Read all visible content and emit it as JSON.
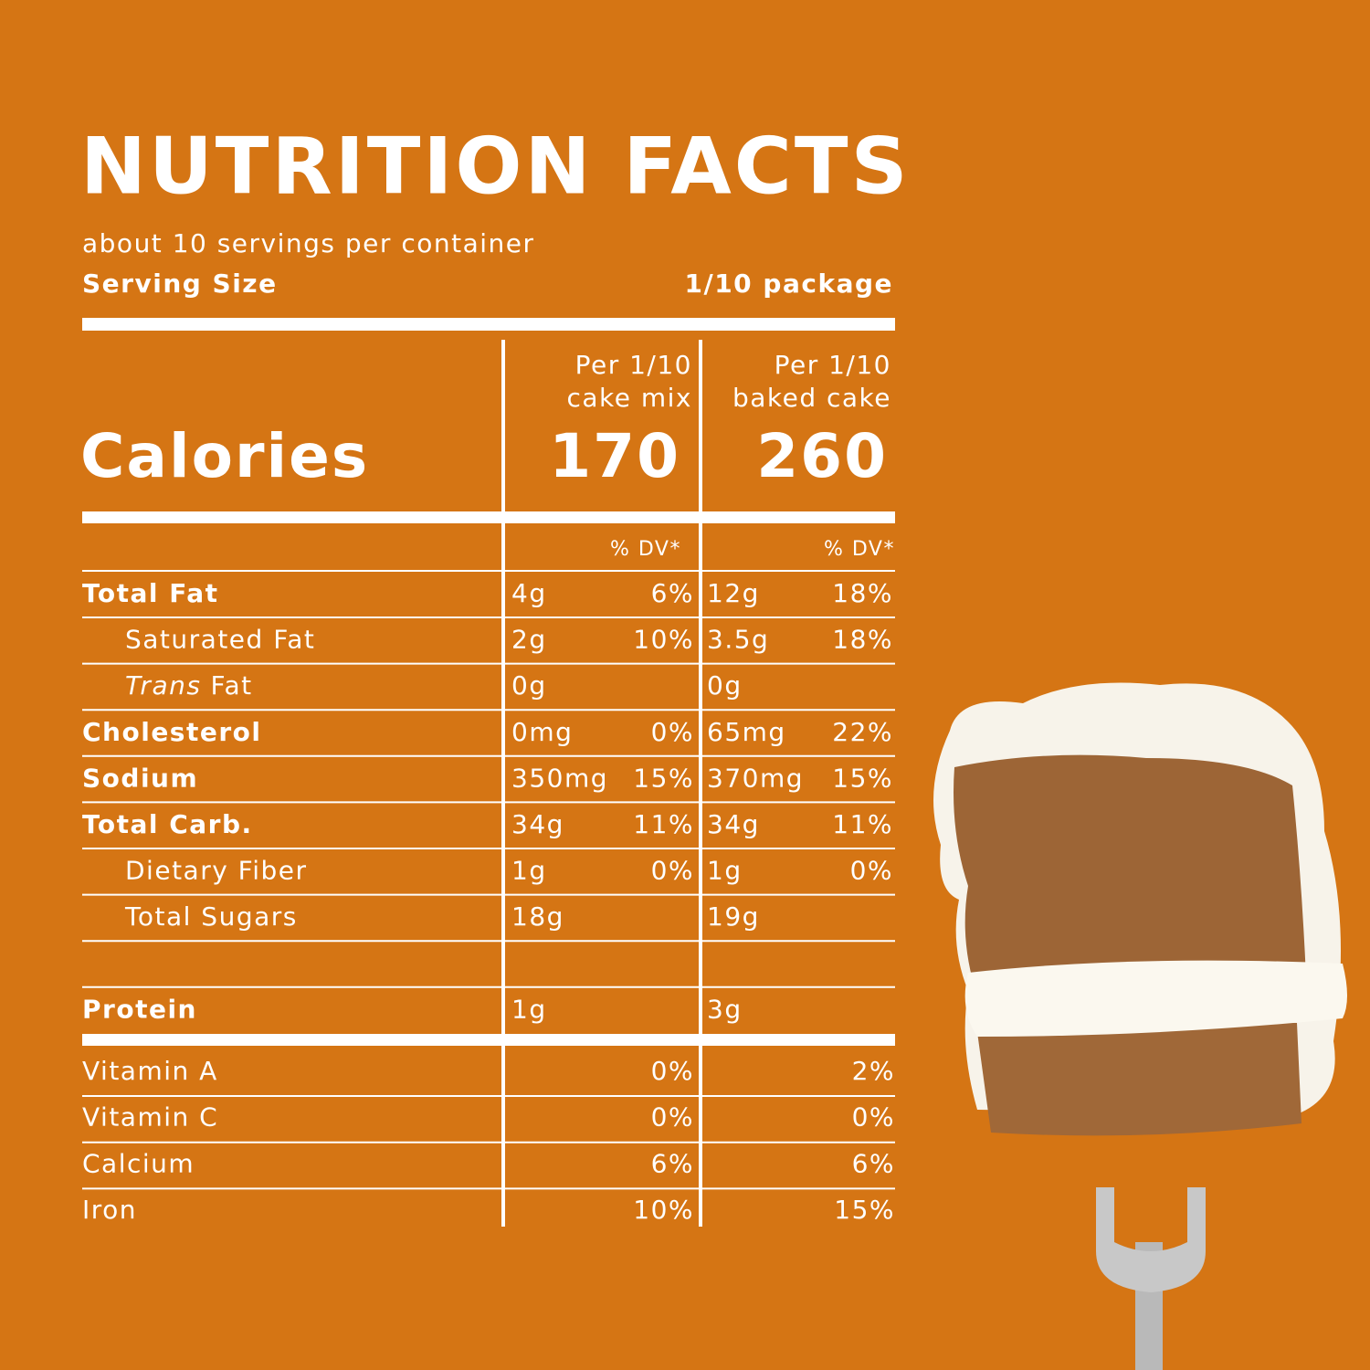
{
  "header": {
    "title": "NUTRITION FACTS",
    "servings": "about 10 servings per container",
    "serving_size_label": "Serving Size",
    "serving_size": "1/10 package"
  },
  "columns": [
    [
      "Per 1/10",
      "cake mix"
    ],
    [
      "Per 1/10",
      "baked cake"
    ]
  ],
  "calories": {
    "label": "Calories",
    "values": [
      170,
      260
    ]
  },
  "dv_header": [
    "% DV*",
    "% DV*"
  ],
  "rows": [
    {
      "name": "Total Fat",
      "bold": true,
      "mix": {
        "amount": "4g",
        "dv": "6%"
      },
      "baked": {
        "amount": "12g",
        "dv": "18%"
      }
    },
    {
      "name": "Saturated Fat",
      "indent": true,
      "mix": {
        "amount": "2g",
        "dv": "10%"
      },
      "baked": {
        "amount": "3.5g",
        "dv": "18%"
      }
    },
    {
      "italic": "Trans",
      "name": "Fat",
      "indent": true,
      "mix": {
        "amount": "0g"
      },
      "baked": {
        "amount": "0g"
      }
    },
    {
      "name": "Cholesterol",
      "bold": true,
      "mix": {
        "amount": "0mg",
        "dv": "0%"
      },
      "baked": {
        "amount": "65mg",
        "dv": "22%"
      }
    },
    {
      "name": "Sodium",
      "bold": true,
      "mix": {
        "amount": "350mg",
        "dv": "15%"
      },
      "baked": {
        "amount": "370mg",
        "dv": "15%"
      }
    },
    {
      "name": "Total Carb.",
      "bold": true,
      "mix": {
        "amount": "34g",
        "dv": "11%"
      },
      "baked": {
        "amount": "34g",
        "dv": "11%"
      }
    },
    {
      "name": "Dietary Fiber",
      "indent": true,
      "mix": {
        "amount": "1g",
        "dv": "0%"
      },
      "baked": {
        "amount": "1g",
        "dv": "0%"
      }
    },
    {
      "name": "Total Sugars",
      "indent": true,
      "mix": {
        "amount": "18g"
      },
      "baked": {
        "amount": "19g"
      }
    },
    {
      "name": "Protein",
      "bold": true,
      "mix": {
        "amount": "1g"
      },
      "baked": {
        "amount": "3g"
      }
    }
  ],
  "vitamins": [
    {
      "name": "Vitamin A",
      "mix": "0%",
      "baked": "2%"
    },
    {
      "name": "Vitamin C",
      "mix": "0%",
      "baked": "0%"
    },
    {
      "name": "Calcium",
      "mix": "6%",
      "baked": "6%"
    },
    {
      "name": "Iron",
      "mix": "10%",
      "baked": "15%"
    }
  ]
}
